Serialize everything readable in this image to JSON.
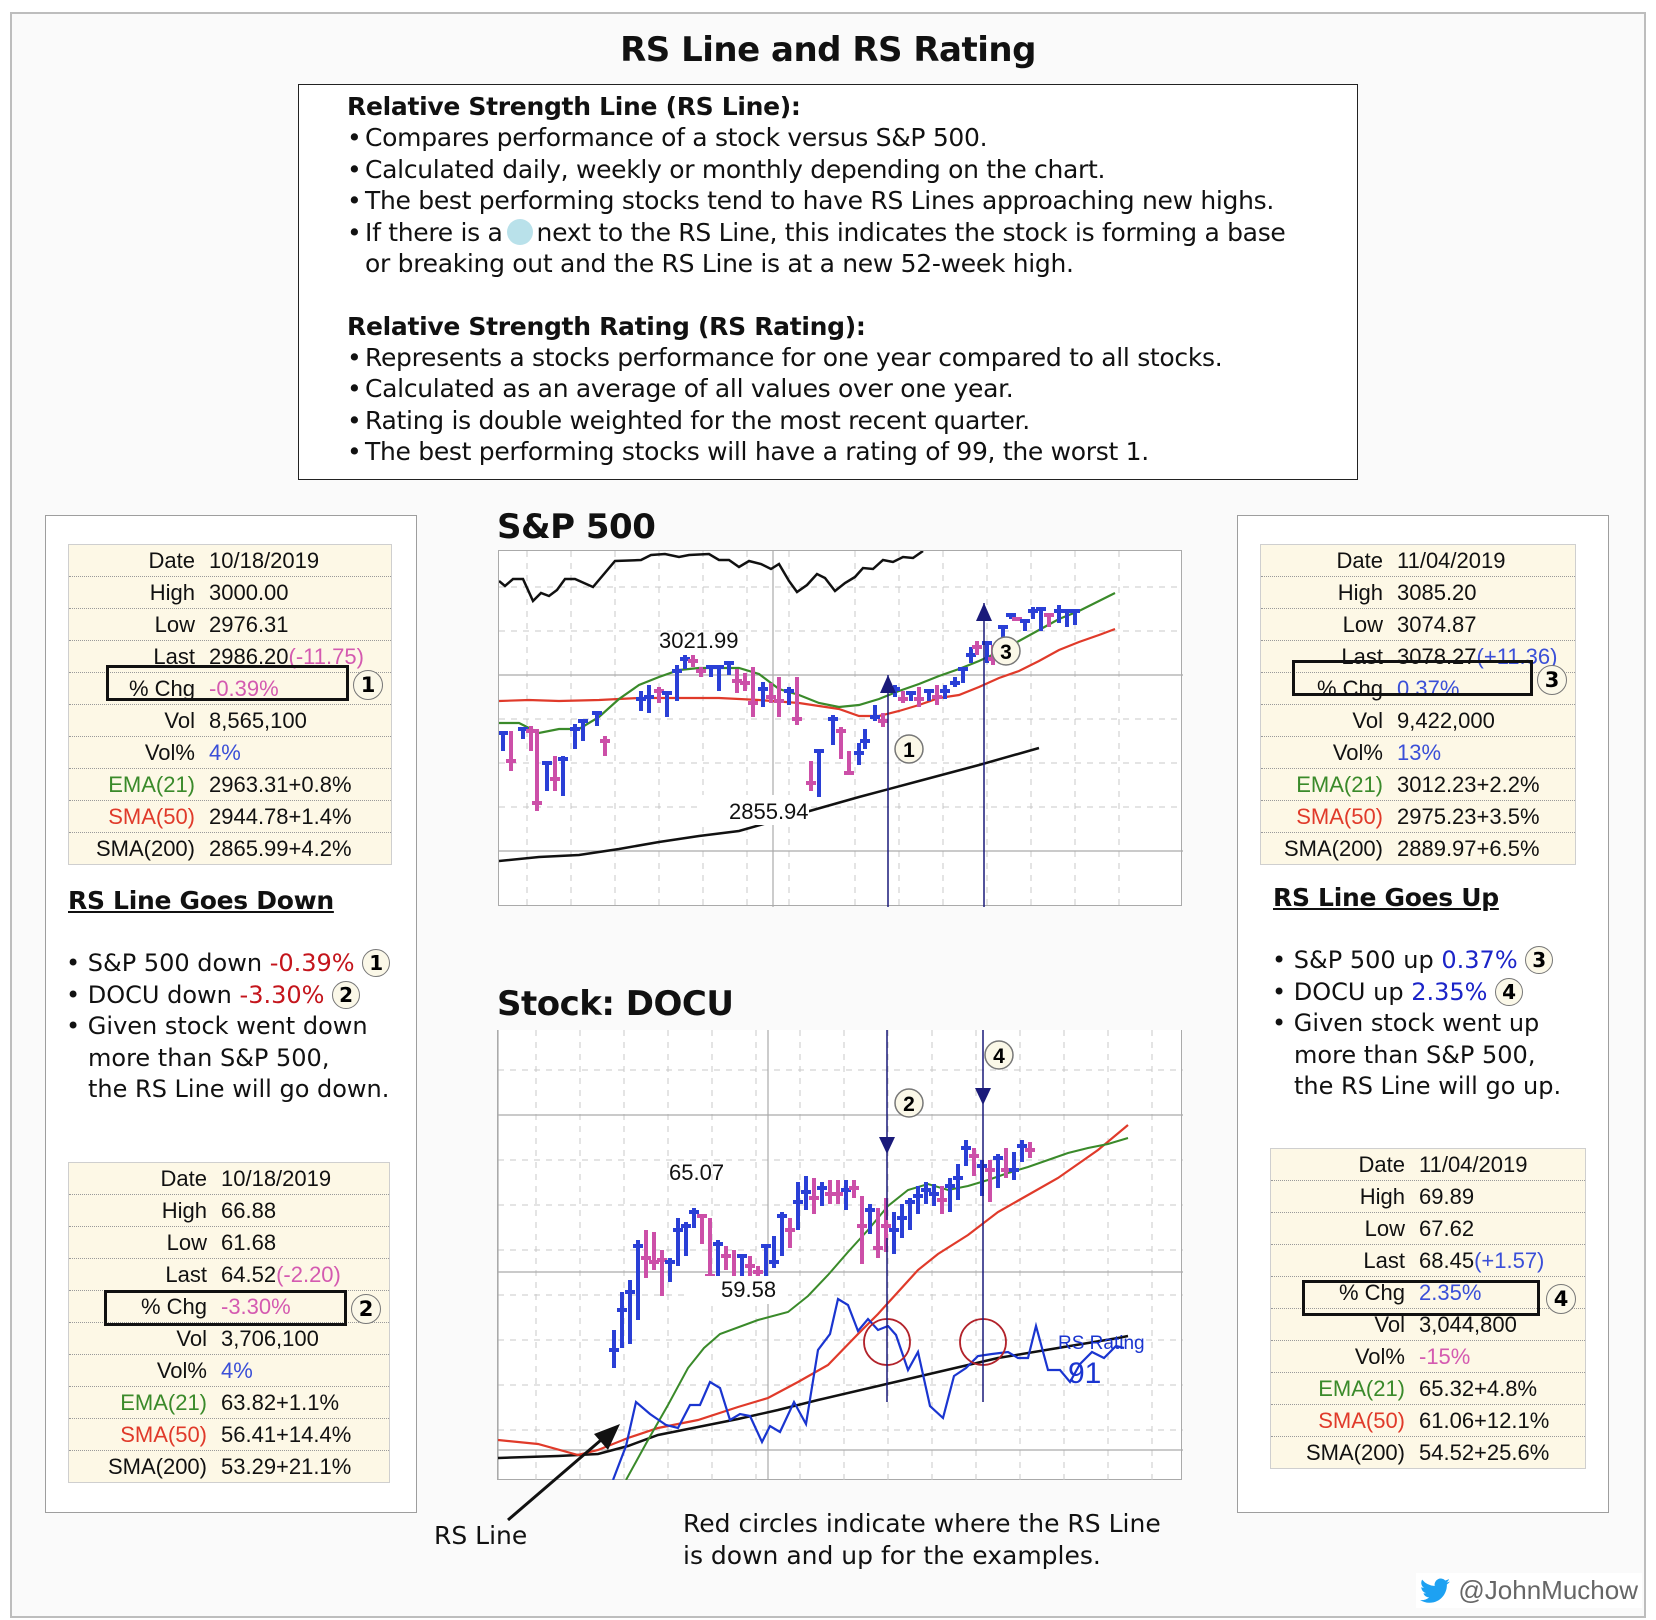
{
  "title": "RS Line and RS Rating",
  "info": {
    "rs_line_heading": "Relative Strength Line (RS Line):",
    "rs_line_bullets": [
      "Compares performance of a stock versus S&P 500.",
      "Calculated daily, weekly or monthly depending on the chart.",
      "The best performing stocks tend to have RS Lines approaching new highs."
    ],
    "rs_line_dot_bullet_pre": "If there is a",
    "rs_line_dot_bullet_post": "next to the RS Line, this indicates the stock is forming a base",
    "rs_line_dot_bullet_cont": "or breaking out and the RS Line is at a new 52-week high.",
    "rs_rating_heading": "Relative Strength Rating (RS Rating):",
    "rs_rating_bullets": [
      "Represents a stocks performance for one year compared to all stocks.",
      "Calculated as an average of all values over one year.",
      "Rating is double weighted for the most recent quarter.",
      "The best performing stocks will have a rating of 99, the worst 1."
    ],
    "dot_color": "#b9e1ea"
  },
  "left_panel": {
    "sp_table": {
      "rows": [
        {
          "label": "Date",
          "value": "10/18/2019"
        },
        {
          "label": "High",
          "value": "3000.00"
        },
        {
          "label": "Low",
          "value": "2976.31"
        },
        {
          "label": "Last",
          "value": "2986.20",
          "change": "(-11.75)"
        },
        {
          "label": "% Chg",
          "value": "-0.39%"
        },
        {
          "label": "Vol",
          "value": "8,565,100"
        },
        {
          "label": "Vol%",
          "value": "4%"
        },
        {
          "label": "EMA(21)",
          "value": "2963.31+0.8%"
        },
        {
          "label": "SMA(50)",
          "value": "2944.78+1.4%"
        },
        {
          "label": "SMA(200)",
          "value": "2865.99+4.2%"
        }
      ],
      "marker": "1"
    },
    "heading": "RS Line Goes Down",
    "bullets": {
      "b1_pre": "S&P 500 down",
      "b1_val": "-0.39%",
      "b1_marker": "1",
      "b2_pre": "DOCU down",
      "b2_val": "-3.30%",
      "b2_marker": "2",
      "b3_l1": "Given stock went down",
      "b3_l2": "more than S&P 500,",
      "b3_l3": "the RS Line will go down."
    },
    "docu_table": {
      "rows": [
        {
          "label": "Date",
          "value": "10/18/2019"
        },
        {
          "label": "High",
          "value": "66.88"
        },
        {
          "label": "Low",
          "value": "61.68"
        },
        {
          "label": "Last",
          "value": "64.52",
          "change": "(-2.20)"
        },
        {
          "label": "% Chg",
          "value": "-3.30%"
        },
        {
          "label": "Vol",
          "value": "3,706,100"
        },
        {
          "label": "Vol%",
          "value": "4%"
        },
        {
          "label": "EMA(21)",
          "value": "63.82+1.1%"
        },
        {
          "label": "SMA(50)",
          "value": "56.41+14.4%"
        },
        {
          "label": "SMA(200)",
          "value": "53.29+21.1%"
        }
      ],
      "marker": "2"
    }
  },
  "right_panel": {
    "sp_table": {
      "rows": [
        {
          "label": "Date",
          "value": "11/04/2019"
        },
        {
          "label": "High",
          "value": "3085.20"
        },
        {
          "label": "Low",
          "value": "3074.87"
        },
        {
          "label": "Last",
          "value": "3078.27",
          "change": "(+11.36)"
        },
        {
          "label": "% Chg",
          "value": "0.37%"
        },
        {
          "label": "Vol",
          "value": "9,422,000"
        },
        {
          "label": "Vol%",
          "value": "13%"
        },
        {
          "label": "EMA(21)",
          "value": "3012.23+2.2%"
        },
        {
          "label": "SMA(50)",
          "value": "2975.23+3.5%"
        },
        {
          "label": "SMA(200)",
          "value": "2889.97+6.5%"
        }
      ],
      "marker": "3"
    },
    "heading": "RS Line Goes Up",
    "bullets": {
      "b1_pre": "S&P 500 up",
      "b1_val": "0.37%",
      "b1_marker": "3",
      "b2_pre": "DOCU up",
      "b2_val": "2.35%",
      "b2_marker": "4",
      "b3_l1": "Given stock went up",
      "b3_l2": "more than S&P 500,",
      "b3_l3": "the RS Line will go up."
    },
    "docu_table": {
      "rows": [
        {
          "label": "Date",
          "value": "11/04/2019"
        },
        {
          "label": "High",
          "value": "69.89"
        },
        {
          "label": "Low",
          "value": "67.62"
        },
        {
          "label": "Last",
          "value": "68.45",
          "change": "(+1.57)"
        },
        {
          "label": "% Chg",
          "value": "2.35%"
        },
        {
          "label": "Vol",
          "value": "3,044,800"
        },
        {
          "label": "Vol%",
          "value": "-15%"
        },
        {
          "label": "EMA(21)",
          "value": "65.32+4.8%"
        },
        {
          "label": "SMA(50)",
          "value": "61.06+12.1%"
        },
        {
          "label": "SMA(200)",
          "value": "54.52+25.6%"
        }
      ],
      "marker": "4"
    }
  },
  "sp_chart": {
    "title": "S&P 500",
    "high_label": "3021.99",
    "low_label": "2855.94",
    "marker_1": "1",
    "marker_3": "3"
  },
  "docu_chart": {
    "title": "Stock: DOCU",
    "high_label": "65.07",
    "low_label": "59.58",
    "marker_2": "2",
    "marker_4": "4",
    "rs_rating_label": "RS Rating",
    "rs_rating_value": "91"
  },
  "annotations": {
    "rs_line_label": "RS Line",
    "red_circles_note_l1": "Red circles indicate where the RS Line",
    "red_circles_note_l2": "is down and up for the examples."
  },
  "footer": {
    "twitter_handle": "@JohnMuchow"
  },
  "colors": {
    "up_bar": "#2a3fd6",
    "down_bar": "#cc4fa8",
    "ema21": "#3a8a2a",
    "sma50": "#e03a2a",
    "sma200": "#111111",
    "rs_line": "#1a35d0",
    "neg_text_table": "#d45ab0",
    "pos_text_table": "#3a4fd8",
    "neg_text_bullet": "#c4151c",
    "pos_text_bullet": "#1b24c8",
    "twitter": "#1da1f2"
  }
}
